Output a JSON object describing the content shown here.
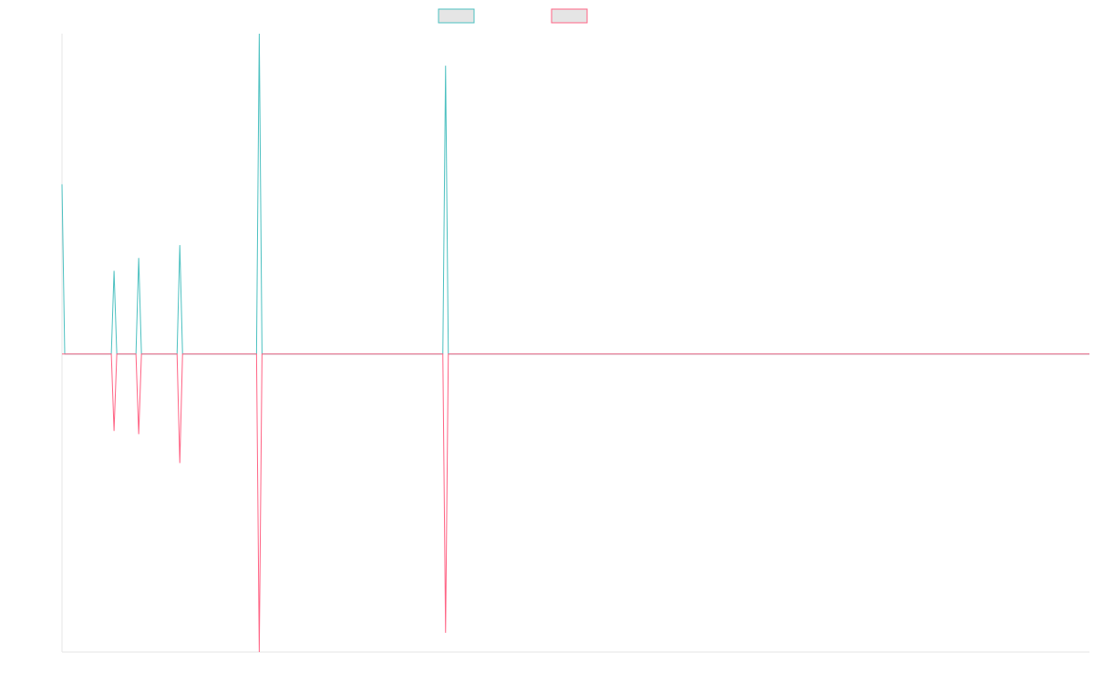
{
  "chart_data": {
    "type": "line",
    "title": "",
    "xlabel": "",
    "ylabel": "",
    "grid": false,
    "legend_placement": "top",
    "ylim": [
      -0.93,
      1.0
    ],
    "x_count": 376,
    "series": [
      {
        "color": "#4bc0c0",
        "nonzero_points": [
          [
            0,
            0.53
          ],
          [
            19,
            0.26
          ],
          [
            28,
            0.3
          ],
          [
            43,
            0.34
          ],
          [
            72,
            1.0
          ],
          [
            140,
            0.9
          ]
        ]
      },
      {
        "color": "#ff6384",
        "nonzero_points": [
          [
            19,
            -0.24
          ],
          [
            28,
            -0.25
          ],
          [
            43,
            -0.34
          ],
          [
            72,
            -0.93
          ],
          [
            140,
            -0.87
          ]
        ]
      }
    ]
  },
  "legend_box_fill": "#e5e5e5",
  "axis_color": "#e5e5e5"
}
